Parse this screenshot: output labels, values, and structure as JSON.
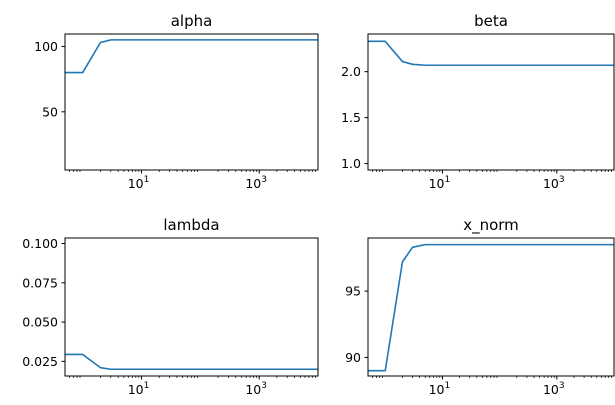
{
  "chart_data": [
    {
      "type": "line",
      "title": "alpha",
      "xscale": "log",
      "xlim": [
        0.5,
        10000
      ],
      "ylim": [
        5.5,
        109.5
      ],
      "xticks": [
        {
          "value": 10,
          "base": "10",
          "exp": "1"
        },
        {
          "value": 1000,
          "base": "10",
          "exp": "3"
        }
      ],
      "yticks": [
        {
          "value": 50,
          "label": "50"
        },
        {
          "value": 100,
          "label": "100"
        }
      ],
      "series": [
        {
          "color": "#1f77b4",
          "points": [
            [
              0.5,
              80
            ],
            [
              1,
              80
            ],
            [
              2,
              103
            ],
            [
              3,
              105
            ],
            [
              5,
              105
            ],
            [
              10,
              105
            ],
            [
              100,
              105
            ],
            [
              1000,
              105
            ],
            [
              10000,
              105
            ]
          ]
        }
      ]
    },
    {
      "type": "line",
      "title": "beta",
      "xscale": "log",
      "xlim": [
        0.5,
        10000
      ],
      "ylim": [
        0.93,
        2.41
      ],
      "xticks": [
        {
          "value": 10,
          "base": "10",
          "exp": "1"
        },
        {
          "value": 1000,
          "base": "10",
          "exp": "3"
        }
      ],
      "yticks": [
        {
          "value": 1.0,
          "label": "1.0"
        },
        {
          "value": 1.5,
          "label": "1.5"
        },
        {
          "value": 2.0,
          "label": "2.0"
        }
      ],
      "series": [
        {
          "color": "#1f77b4",
          "points": [
            [
              0.5,
              2.33
            ],
            [
              1,
              2.33
            ],
            [
              2,
              2.11
            ],
            [
              3,
              2.08
            ],
            [
              5,
              2.07
            ],
            [
              10,
              2.07
            ],
            [
              100,
              2.07
            ],
            [
              1000,
              2.07
            ],
            [
              10000,
              2.07
            ]
          ]
        }
      ]
    },
    {
      "type": "line",
      "title": "lambda",
      "xscale": "log",
      "xlim": [
        0.5,
        10000
      ],
      "ylim": [
        0.0157,
        0.1035
      ],
      "xticks": [
        {
          "value": 10,
          "base": "10",
          "exp": "1"
        },
        {
          "value": 1000,
          "base": "10",
          "exp": "3"
        }
      ],
      "yticks": [
        {
          "value": 0.025,
          "label": "0.025"
        },
        {
          "value": 0.05,
          "label": "0.050"
        },
        {
          "value": 0.075,
          "label": "0.075"
        },
        {
          "value": 0.1,
          "label": "0.100"
        }
      ],
      "series": [
        {
          "color": "#1f77b4",
          "points": [
            [
              0.5,
              0.0294
            ],
            [
              1,
              0.0294
            ],
            [
              2,
              0.021
            ],
            [
              3,
              0.02
            ],
            [
              5,
              0.02
            ],
            [
              10,
              0.02
            ],
            [
              100,
              0.02
            ],
            [
              1000,
              0.02
            ],
            [
              10000,
              0.02
            ]
          ]
        }
      ]
    },
    {
      "type": "line",
      "title": "x_norm",
      "xscale": "log",
      "xlim": [
        0.5,
        10000
      ],
      "ylim": [
        88.6,
        99.0
      ],
      "xticks": [
        {
          "value": 10,
          "base": "10",
          "exp": "1"
        },
        {
          "value": 1000,
          "base": "10",
          "exp": "3"
        }
      ],
      "yticks": [
        {
          "value": 90,
          "label": "90"
        },
        {
          "value": 95,
          "label": "95"
        }
      ],
      "series": [
        {
          "color": "#1f77b4",
          "points": [
            [
              0.5,
              89.0
            ],
            [
              1,
              89.0
            ],
            [
              2,
              97.2
            ],
            [
              3,
              98.3
            ],
            [
              5,
              98.5
            ],
            [
              10,
              98.5
            ],
            [
              100,
              98.5
            ],
            [
              1000,
              98.5
            ],
            [
              10000,
              98.5
            ]
          ]
        }
      ]
    }
  ]
}
